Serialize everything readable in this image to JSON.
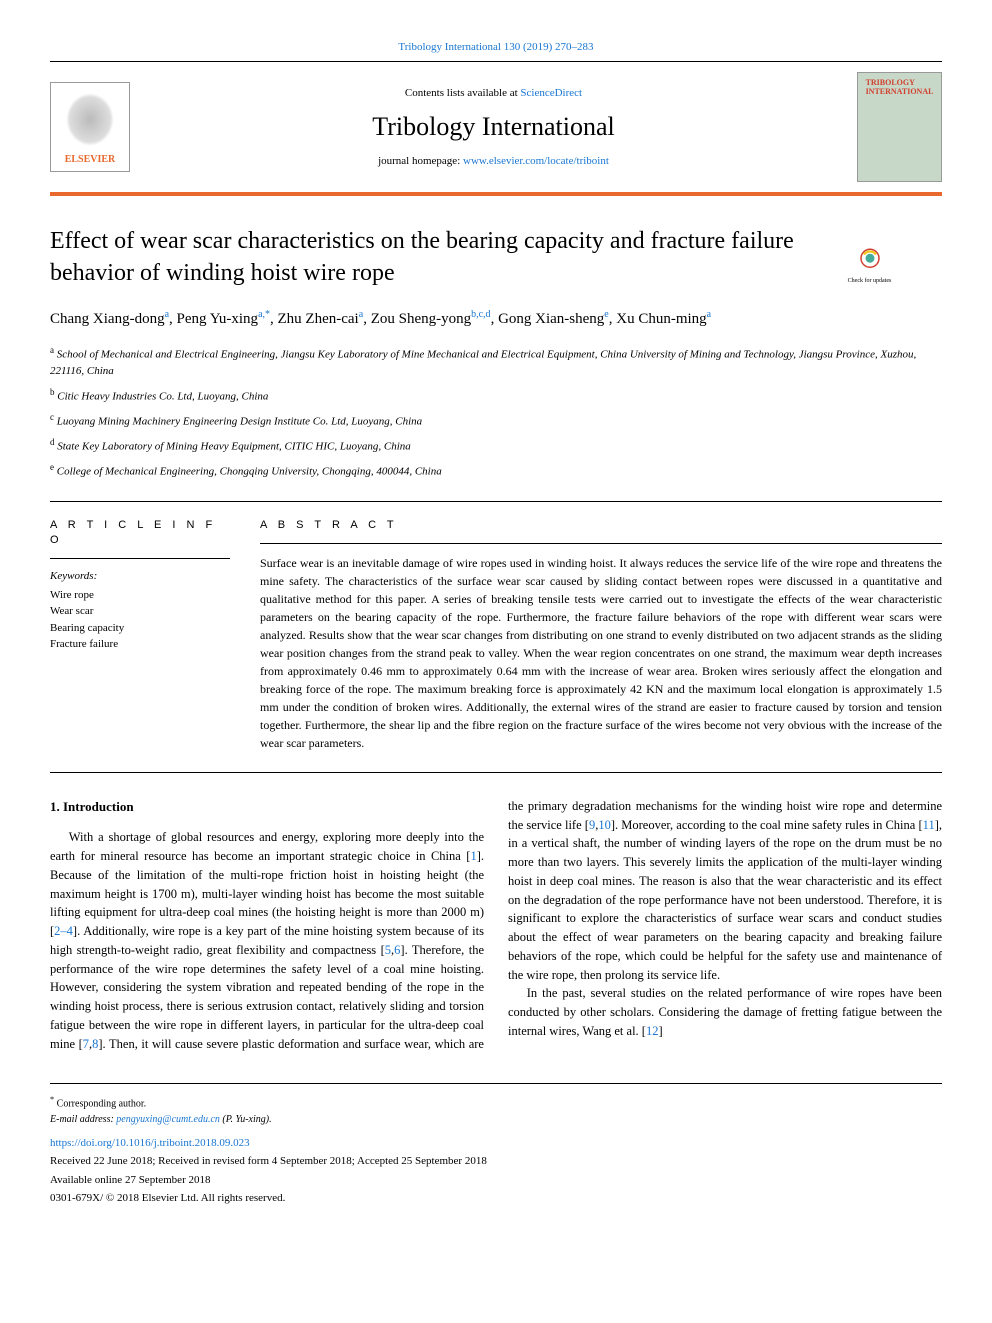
{
  "top_citation": "Tribology International 130 (2019) 270–283",
  "header": {
    "contents_prefix": "Contents lists available at ",
    "contents_link": "ScienceDirect",
    "journal_name": "Tribology International",
    "homepage_prefix": "journal homepage: ",
    "homepage_link": "www.elsevier.com/locate/triboint",
    "publisher_logo_text": "ELSEVIER",
    "cover_text_1": "TRIBOLOGY",
    "cover_text_2": "INTERNATIONAL"
  },
  "update_badge": "Check for updates",
  "title": "Effect of wear scar characteristics on the bearing capacity and fracture failure behavior of winding hoist wire rope",
  "authors_html": "Chang Xiang-dong<sup>a</sup>, Peng Yu-xing<sup>a,*</sup>, Zhu Zhen-cai<sup>a</sup>, Zou Sheng-yong<sup>b,c,d</sup>, Gong Xian-sheng<sup>e</sup>, Xu Chun-ming<sup>a</sup>",
  "affiliations": [
    {
      "sup": "a",
      "text": "School of Mechanical and Electrical Engineering, Jiangsu Key Laboratory of Mine Mechanical and Electrical Equipment, China University of Mining and Technology, Jiangsu Province, Xuzhou, 221116, China"
    },
    {
      "sup": "b",
      "text": "Citic Heavy Industries Co. Ltd, Luoyang, China"
    },
    {
      "sup": "c",
      "text": "Luoyang Mining Machinery Engineering Design Institute Co. Ltd, Luoyang, China"
    },
    {
      "sup": "d",
      "text": "State Key Laboratory of Mining Heavy Equipment, CITIC HIC, Luoyang, China"
    },
    {
      "sup": "e",
      "text": "College of Mechanical Engineering, Chongqing University, Chongqing, 400044, China"
    }
  ],
  "article_info_label": "A R T I C L E   I N F O",
  "abstract_label": "A B S T R A C T",
  "keywords_label": "Keywords:",
  "keywords": [
    "Wire rope",
    "Wear scar",
    "Bearing capacity",
    "Fracture failure"
  ],
  "abstract": "Surface wear is an inevitable damage of wire ropes used in winding hoist. It always reduces the service life of the wire rope and threatens the mine safety. The characteristics of the surface wear scar caused by sliding contact between ropes were discussed in a quantitative and qualitative method for this paper. A series of breaking tensile tests were carried out to investigate the effects of the wear characteristic parameters on the bearing capacity of the rope. Furthermore, the fracture failure behaviors of the rope with different wear scars were analyzed. Results show that the wear scar changes from distributing on one strand to evenly distributed on two adjacent strands as the sliding wear position changes from the strand peak to valley. When the wear region concentrates on one strand, the maximum wear depth increases from approximately 0.46 mm to approximately 0.64 mm with the increase of wear area. Broken wires seriously affect the elongation and breaking force of the rope. The maximum breaking force is approximately 42 KN and the maximum local elongation is approximately 1.5 mm under the condition of broken wires. Additionally, the external wires of the strand are easier to fracture caused by torsion and tension together. Furthermore, the shear lip and the fibre region on the fracture surface of the wires become not very obvious with the increase of the wear scar parameters.",
  "intro_heading": "1. Introduction",
  "intro_p1_a": "With a shortage of global resources and energy, exploring more deeply into the earth for mineral resource has become an important strategic choice in China [",
  "intro_p1_ref1": "1",
  "intro_p1_b": "]. Because of the limitation of the multi-rope friction hoist in hoisting height (the maximum height is 1700 m), multi-layer winding hoist has become the most suitable lifting equipment for ultra-deep coal mines (the hoisting height is more than 2000 m) [",
  "intro_p1_ref2": "2–4",
  "intro_p1_c": "]. Additionally, wire rope is a key part of the mine hoisting system because of its high strength-to-weight radio, great flexibility and compactness [",
  "intro_p1_ref3": "5",
  "intro_p1_d": ",",
  "intro_p1_ref4": "6",
  "intro_p1_e": "]. Therefore, the performance of the wire rope determines the safety level of a coal mine hoisting. However, considering the system vibration and repeated bending of the rope in the winding hoist process, there is serious extrusion contact, relatively sliding and torsion fatigue between the wire rope in different layers, in particular for the ultra-deep coal mine [",
  "intro_p1_ref5": "7",
  "intro_p1_f": ",",
  "intro_p1_ref6": "8",
  "intro_p1_g": "]. Then, it will cause severe plastic deformation and surface wear, which are the primary degradation mechanisms for the winding hoist wire rope and determine the service life [",
  "intro_p1_ref7": "9",
  "intro_p1_h": ",",
  "intro_p1_ref8": "10",
  "intro_p1_i": "]. Moreover, according to the coal mine safety rules in China [",
  "intro_p1_ref9": "11",
  "intro_p1_j": "], in a vertical shaft, the number of winding layers of the rope on the drum must be no more than two layers. This severely limits the application of the multi-layer winding hoist in deep coal mines. The reason is also that the wear characteristic and its effect on the degradation of the rope performance have not been understood. Therefore, it is significant to explore the characteristics of surface wear scars and conduct studies about the effect of wear parameters on the bearing capacity and breaking failure behaviors of the rope, which could be helpful for the safety use and maintenance of the wire rope, then prolong its service life.",
  "intro_p2_a": "In the past, several studies on the related performance of wire ropes have been conducted by other scholars. Considering the damage of fretting fatigue between the internal wires, Wang et al. [",
  "intro_p2_ref1": "12",
  "intro_p2_b": "]",
  "footer": {
    "corresponding_mark": "*",
    "corresponding_text": " Corresponding author.",
    "email_label": "E-mail address: ",
    "email_link": "pengyuxing@cumt.edu.cn",
    "email_name": " (P. Yu-xing).",
    "doi": "https://doi.org/10.1016/j.triboint.2018.09.023",
    "dates": "Received 22 June 2018; Received in revised form 4 September 2018; Accepted 25 September 2018",
    "online": "Available online 27 September 2018",
    "copyright": "0301-679X/ © 2018 Elsevier Ltd. All rights reserved."
  },
  "colors": {
    "link": "#1976d2",
    "accent": "#e8682e",
    "cover_bg": "#c8d8c8",
    "cover_text": "#d04030"
  }
}
